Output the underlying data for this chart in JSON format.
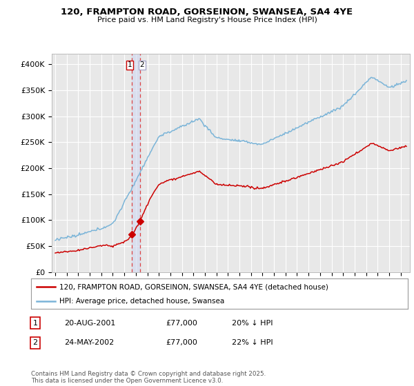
{
  "title": "120, FRAMPTON ROAD, GORSEINON, SWANSEA, SA4 4YE",
  "subtitle": "Price paid vs. HM Land Registry's House Price Index (HPI)",
  "ylim": [
    0,
    420000
  ],
  "yticks": [
    0,
    50000,
    100000,
    150000,
    200000,
    250000,
    300000,
    350000,
    400000
  ],
  "ytick_labels": [
    "£0",
    "£50K",
    "£100K",
    "£150K",
    "£200K",
    "£250K",
    "£300K",
    "£350K",
    "£400K"
  ],
  "hpi_color": "#7ab4d8",
  "price_color": "#cc0000",
  "vline_color": "#dd4444",
  "sale1_date": 2001.635,
  "sale2_date": 2002.388,
  "sale1_price": 77000,
  "sale2_price": 77000,
  "legend_entry1": "120, FRAMPTON ROAD, GORSEINON, SWANSEA, SA4 4YE (detached house)",
  "legend_entry2": "HPI: Average price, detached house, Swansea",
  "footnote": "Contains HM Land Registry data © Crown copyright and database right 2025.\nThis data is licensed under the Open Government Licence v3.0.",
  "table_row1": [
    "1",
    "20-AUG-2001",
    "£77,000",
    "20% ↓ HPI"
  ],
  "table_row2": [
    "2",
    "24-MAY-2002",
    "£77,000",
    "22% ↓ HPI"
  ],
  "background_color": "#ffffff",
  "plot_bg_color": "#e8e8e8",
  "grid_color": "#ffffff",
  "xlim_left": 1994.7,
  "xlim_right": 2025.8
}
